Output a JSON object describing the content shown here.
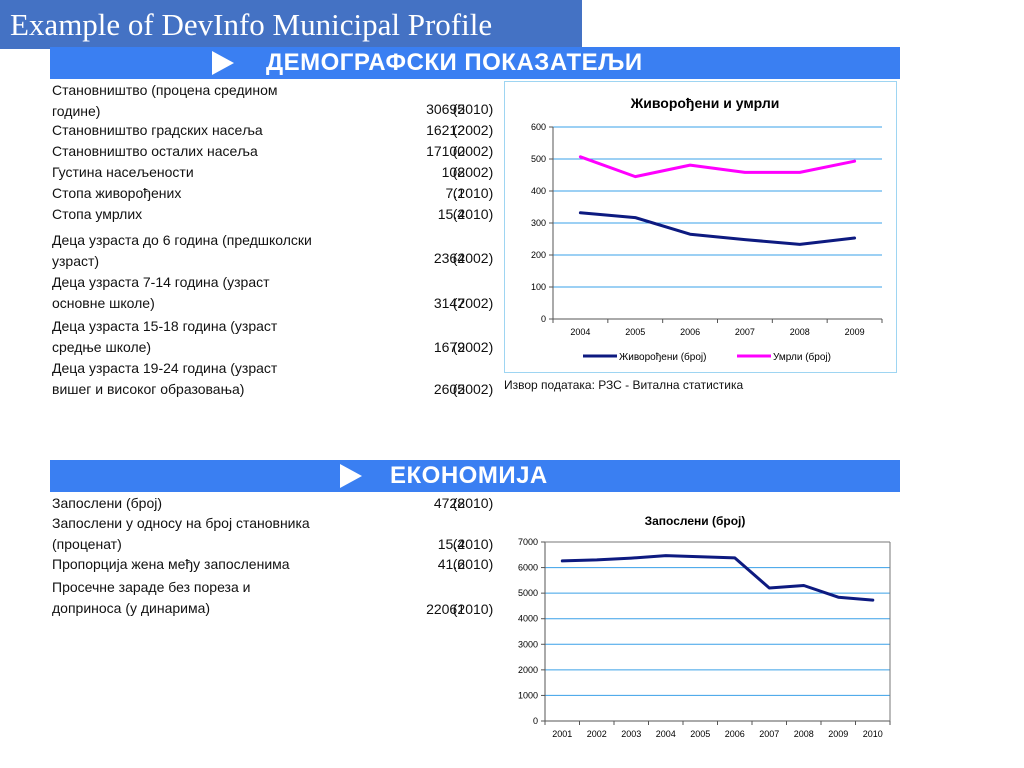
{
  "slide_title": "Example of DevInfo Municipal Profile",
  "demographics": {
    "banner": "ДЕМОГРАФСКИ ПОКАЗАТЕЉИ",
    "rows": [
      {
        "label_lines": [
          "Становништво (процена средином",
          "године)"
        ],
        "value": "30695",
        "year": "(2010)"
      },
      {
        "label_lines": [
          "Становништво градских насеља"
        ],
        "value": "16212",
        "year": "(2002)"
      },
      {
        "label_lines": [
          "Становништво осталих насеља"
        ],
        "value": "17100",
        "year": "(2002)"
      },
      {
        "label_lines": [
          "Густина насељености"
        ],
        "value": "108",
        "year": "(2002)"
      },
      {
        "label_lines": [
          "Стопа живорођених"
        ],
        "value": "7.1",
        "year": "(2010)"
      },
      {
        "label_lines": [
          "Стопа умрлих"
        ],
        "value": "15.4",
        "year": "(2010)"
      },
      {
        "label_lines": [
          "Деца узраста до 6 година (предшколски",
          "узраст)"
        ],
        "value": "2364",
        "year": "(2002)"
      },
      {
        "label_lines": [
          "Деца узраста 7-14 година (узраст",
          "основне школе)"
        ],
        "value": "3147",
        "year": "(2002)"
      },
      {
        "label_lines": [
          "Деца узраста 15-18 година (узраст",
          "средње школе)"
        ],
        "value": "1679",
        "year": "(2002)"
      },
      {
        "label_lines": [
          "Деца узраста 19-24 година (узраст",
          "вишег и високог образовања)"
        ],
        "value": "2605",
        "year": "(2002)"
      }
    ],
    "source_note": "Извор података: РЗС - Витална статистика"
  },
  "economy": {
    "banner": "ЕКОНОМИЈА",
    "rows": [
      {
        "label_lines": [
          "Запослени (број)"
        ],
        "value": "4728",
        "year": "(2010)"
      },
      {
        "label_lines": [
          "Запослени у односу на број становника",
          "(проценат)"
        ],
        "value": "15.4",
        "year": "(2010)"
      },
      {
        "label_lines": [
          "Пропорција жена међу запосленима"
        ],
        "value": "41.6",
        "year": "(2010)"
      },
      {
        "label_lines": [
          "Просечне зараде без пореза и",
          "доприноса (у динарима)"
        ],
        "value": "22061",
        "year": "(2010)"
      }
    ]
  },
  "chart_data": [
    {
      "type": "line",
      "title": "Живорођени и умрли",
      "xlabel": "",
      "ylabel": "",
      "x": [
        "2004",
        "2005",
        "2006",
        "2007",
        "2008",
        "2009"
      ],
      "ylim": [
        0,
        600
      ],
      "yticks": [
        0,
        100,
        200,
        300,
        400,
        500,
        600
      ],
      "ytick_labels": [
        "0",
        "100",
        "200",
        "300",
        "400",
        "500",
        "600"
      ],
      "grid": true,
      "legend": "bottom",
      "series": [
        {
          "name": "Живорођени (број)",
          "color": "#0d1a80",
          "values": [
            332,
            317,
            265,
            248,
            233,
            253
          ]
        },
        {
          "name": "Умрли (број)",
          "color": "#ff00ff",
          "values": [
            507,
            445,
            481,
            458,
            458,
            493
          ]
        }
      ]
    },
    {
      "type": "line",
      "title": "Запослени (број)",
      "xlabel": "",
      "ylabel": "",
      "x": [
        "2001",
        "2002",
        "2003",
        "2004",
        "2005",
        "2006",
        "2007",
        "2008",
        "2009",
        "2010"
      ],
      "ylim": [
        0,
        7000
      ],
      "yticks": [
        0,
        1000,
        2000,
        3000,
        4000,
        5000,
        6000,
        7000
      ],
      "ytick_labels": [
        "0",
        "1000",
        "2000",
        "3000",
        "4000",
        "5000",
        "6000",
        "7000"
      ],
      "grid": true,
      "legend": "none",
      "series": [
        {
          "name": "",
          "color": "#0d1a80",
          "values": [
            6260,
            6300,
            6370,
            6470,
            6420,
            6380,
            5200,
            5300,
            4840,
            4728
          ]
        }
      ]
    }
  ]
}
